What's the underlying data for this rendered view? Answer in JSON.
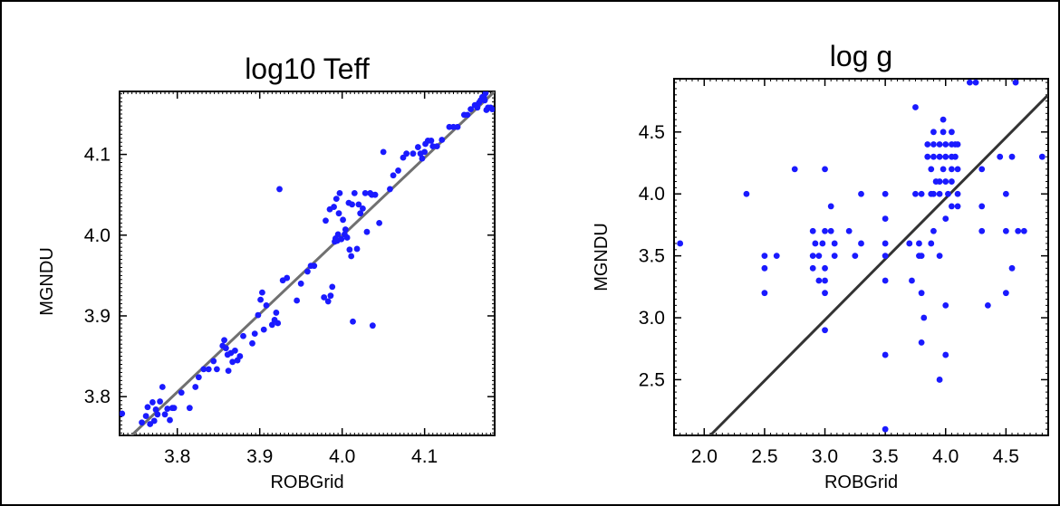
{
  "chart_data": [
    {
      "type": "scatter",
      "title": "log10 Teff",
      "xlabel": "ROBGrid",
      "ylabel": "MGNDU",
      "xlim": [
        3.73,
        4.185
      ],
      "ylim": [
        3.752,
        4.178
      ],
      "xticks": [
        "3.8",
        "3.9",
        "4.0",
        "4.1"
      ],
      "yticks": [
        "3.8",
        "3.9",
        "4.0",
        "4.1"
      ],
      "grid": false,
      "reference_line": [
        [
          3.73,
          3.738
        ],
        [
          4.185,
          4.178
        ]
      ],
      "point_color": "#1a1aff",
      "line_color": "#707070",
      "points": [
        [
          3.733,
          3.779
        ],
        [
          3.757,
          3.768
        ],
        [
          3.762,
          3.776
        ],
        [
          3.764,
          3.787
        ],
        [
          3.767,
          3.766
        ],
        [
          3.77,
          3.793
        ],
        [
          3.772,
          3.77
        ],
        [
          3.774,
          3.784
        ],
        [
          3.776,
          3.778
        ],
        [
          3.779,
          3.794
        ],
        [
          3.782,
          3.812
        ],
        [
          3.785,
          3.778
        ],
        [
          3.788,
          3.785
        ],
        [
          3.791,
          3.771
        ],
        [
          3.794,
          3.786
        ],
        [
          3.796,
          3.786
        ],
        [
          3.805,
          3.805
        ],
        [
          3.815,
          3.786
        ],
        [
          3.822,
          3.812
        ],
        [
          3.826,
          3.824
        ],
        [
          3.832,
          3.834
        ],
        [
          3.838,
          3.834
        ],
        [
          3.844,
          3.844
        ],
        [
          3.848,
          3.834
        ],
        [
          3.855,
          3.863
        ],
        [
          3.857,
          3.87
        ],
        [
          3.859,
          3.86
        ],
        [
          3.861,
          3.852
        ],
        [
          3.862,
          3.832
        ],
        [
          3.865,
          3.854
        ],
        [
          3.867,
          3.843
        ],
        [
          3.87,
          3.857
        ],
        [
          3.873,
          3.845
        ],
        [
          3.876,
          3.85
        ],
        [
          3.88,
          3.875
        ],
        [
          3.891,
          3.866
        ],
        [
          3.894,
          3.878
        ],
        [
          3.898,
          3.901
        ],
        [
          3.901,
          3.92
        ],
        [
          3.903,
          3.929
        ],
        [
          3.905,
          3.883
        ],
        [
          3.908,
          3.913
        ],
        [
          3.915,
          3.889
        ],
        [
          3.918,
          3.895
        ],
        [
          3.92,
          3.904
        ],
        [
          3.922,
          3.891
        ],
        [
          3.924,
          4.057
        ],
        [
          3.928,
          3.944
        ],
        [
          3.933,
          3.947
        ],
        [
          3.945,
          3.919
        ],
        [
          3.95,
          3.94
        ],
        [
          3.958,
          3.955
        ],
        [
          3.962,
          3.962
        ],
        [
          3.966,
          3.962
        ],
        [
          3.978,
          3.923
        ],
        [
          3.98,
          4.018
        ],
        [
          3.983,
          3.918
        ],
        [
          3.985,
          4.032
        ],
        [
          3.986,
          3.925
        ],
        [
          3.988,
          3.936
        ],
        [
          3.99,
          4.035
        ],
        [
          3.991,
          3.992
        ],
        [
          3.992,
          3.996
        ],
        [
          3.993,
          4.045
        ],
        [
          3.994,
          3.993
        ],
        [
          3.995,
          4.001
        ],
        [
          3.996,
          4.027
        ],
        [
          3.997,
          4.052
        ],
        [
          3.999,
          3.995
        ],
        [
          4.001,
          4.019
        ],
        [
          4.003,
          4.001
        ],
        [
          4.004,
          4.007
        ],
        [
          4.006,
          3.997
        ],
        [
          4.008,
          4.04
        ],
        [
          4.009,
          3.982
        ],
        [
          4.011,
          3.974
        ],
        [
          4.012,
          4.038
        ],
        [
          4.013,
          3.893
        ],
        [
          4.015,
          4.052
        ],
        [
          4.018,
          3.983
        ],
        [
          4.02,
          4.038
        ],
        [
          4.022,
          4.027
        ],
        [
          4.025,
          4.033
        ],
        [
          4.028,
          4.052
        ],
        [
          4.03,
          4.004
        ],
        [
          4.034,
          4.052
        ],
        [
          4.036,
          4.05
        ],
        [
          4.037,
          3.888
        ],
        [
          4.04,
          4.05
        ],
        [
          4.045,
          4.015
        ],
        [
          4.05,
          4.103
        ],
        [
          4.058,
          4.057
        ],
        [
          4.062,
          4.074
        ],
        [
          4.068,
          4.08
        ],
        [
          4.074,
          4.096
        ],
        [
          4.078,
          4.101
        ],
        [
          4.086,
          4.101
        ],
        [
          4.092,
          4.109
        ],
        [
          4.095,
          4.101
        ],
        [
          4.097,
          4.095
        ],
        [
          4.1,
          4.103
        ],
        [
          4.101,
          4.113
        ],
        [
          4.104,
          4.117
        ],
        [
          4.108,
          4.117
        ],
        [
          4.11,
          4.11
        ],
        [
          4.115,
          4.11
        ],
        [
          4.121,
          4.118
        ],
        [
          4.13,
          4.134
        ],
        [
          4.135,
          4.134
        ],
        [
          4.14,
          4.134
        ],
        [
          4.148,
          4.149
        ],
        [
          4.152,
          4.149
        ],
        [
          4.156,
          4.156
        ],
        [
          4.161,
          4.161
        ],
        [
          4.164,
          4.158
        ],
        [
          4.166,
          4.164
        ],
        [
          4.168,
          4.167
        ],
        [
          4.17,
          4.171
        ],
        [
          4.172,
          4.171
        ],
        [
          4.173,
          4.167
        ],
        [
          4.174,
          4.176
        ],
        [
          4.175,
          4.155
        ],
        [
          4.177,
          4.158
        ],
        [
          4.18,
          4.158
        ],
        [
          4.182,
          4.156
        ]
      ]
    },
    {
      "type": "scatter",
      "title": "log g",
      "xlabel": "ROBGrid",
      "ylabel": "MGNDU",
      "xlim": [
        1.75,
        4.85
      ],
      "ylim": [
        2.05,
        4.93
      ],
      "xticks": [
        "2.0",
        "2.5",
        "3.0",
        "3.5",
        "4.0",
        "4.5"
      ],
      "yticks": [
        "2.5",
        "3.0",
        "3.5",
        "4.0",
        "4.5"
      ],
      "grid": false,
      "reference_line": [
        [
          2.05,
          2.05
        ],
        [
          4.85,
          4.8
        ]
      ],
      "point_color": "#1a1aff",
      "line_color": "#333333",
      "points": [
        [
          1.8,
          3.6
        ],
        [
          2.35,
          4.0
        ],
        [
          2.5,
          3.5
        ],
        [
          2.5,
          3.4
        ],
        [
          2.5,
          3.2
        ],
        [
          2.6,
          3.5
        ],
        [
          2.75,
          4.2
        ],
        [
          2.9,
          3.7
        ],
        [
          2.9,
          3.5
        ],
        [
          2.9,
          3.4
        ],
        [
          2.92,
          3.6
        ],
        [
          2.95,
          3.5
        ],
        [
          2.95,
          3.3
        ],
        [
          2.98,
          3.6
        ],
        [
          3.0,
          3.7
        ],
        [
          3.0,
          3.4
        ],
        [
          3.0,
          3.2
        ],
        [
          3.0,
          4.2
        ],
        [
          3.0,
          3.3
        ],
        [
          3.0,
          2.9
        ],
        [
          3.05,
          3.9
        ],
        [
          3.05,
          3.7
        ],
        [
          3.08,
          3.6
        ],
        [
          3.08,
          3.5
        ],
        [
          3.2,
          3.7
        ],
        [
          3.25,
          3.5
        ],
        [
          3.3,
          4.0
        ],
        [
          3.3,
          3.6
        ],
        [
          3.5,
          4.0
        ],
        [
          3.5,
          3.8
        ],
        [
          3.5,
          3.6
        ],
        [
          3.5,
          3.5
        ],
        [
          3.5,
          3.3
        ],
        [
          3.5,
          2.7
        ],
        [
          3.5,
          2.1
        ],
        [
          3.7,
          3.6
        ],
        [
          3.72,
          3.3
        ],
        [
          3.75,
          4.7
        ],
        [
          3.75,
          4.0
        ],
        [
          3.78,
          3.6
        ],
        [
          3.78,
          3.5
        ],
        [
          3.8,
          4.0
        ],
        [
          3.8,
          3.5
        ],
        [
          3.8,
          3.2
        ],
        [
          3.8,
          2.8
        ],
        [
          3.82,
          3.0
        ],
        [
          3.85,
          4.4
        ],
        [
          3.85,
          4.3
        ],
        [
          3.88,
          4.2
        ],
        [
          3.88,
          4.0
        ],
        [
          3.88,
          3.6
        ],
        [
          3.9,
          4.5
        ],
        [
          3.9,
          4.4
        ],
        [
          3.9,
          4.3
        ],
        [
          3.9,
          4.0
        ],
        [
          3.9,
          3.7
        ],
        [
          3.92,
          4.1
        ],
        [
          3.95,
          4.4
        ],
        [
          3.95,
          4.3
        ],
        [
          3.95,
          4.1
        ],
        [
          3.95,
          4.0
        ],
        [
          3.95,
          3.5
        ],
        [
          3.95,
          2.5
        ],
        [
          3.98,
          4.6
        ],
        [
          3.98,
          4.5
        ],
        [
          3.98,
          4.2
        ],
        [
          4.0,
          4.4
        ],
        [
          4.0,
          4.3
        ],
        [
          4.0,
          4.1
        ],
        [
          4.0,
          3.8
        ],
        [
          4.0,
          3.1
        ],
        [
          4.0,
          2.7
        ],
        [
          4.02,
          4.0
        ],
        [
          4.05,
          4.5
        ],
        [
          4.05,
          4.4
        ],
        [
          4.05,
          4.3
        ],
        [
          4.05,
          4.2
        ],
        [
          4.05,
          4.1
        ],
        [
          4.05,
          3.9
        ],
        [
          4.08,
          4.4
        ],
        [
          4.08,
          4.3
        ],
        [
          4.1,
          4.4
        ],
        [
          4.1,
          4.2
        ],
        [
          4.1,
          4.0
        ],
        [
          4.1,
          3.9
        ],
        [
          4.2,
          4.9
        ],
        [
          4.25,
          4.9
        ],
        [
          4.3,
          4.2
        ],
        [
          4.3,
          3.9
        ],
        [
          4.3,
          3.7
        ],
        [
          4.35,
          3.1
        ],
        [
          4.45,
          4.3
        ],
        [
          4.5,
          4.0
        ],
        [
          4.5,
          3.7
        ],
        [
          4.5,
          3.2
        ],
        [
          4.55,
          4.3
        ],
        [
          4.55,
          3.4
        ],
        [
          4.58,
          4.9
        ],
        [
          4.6,
          3.7
        ],
        [
          4.65,
          3.7
        ],
        [
          4.8,
          4.3
        ]
      ]
    }
  ]
}
